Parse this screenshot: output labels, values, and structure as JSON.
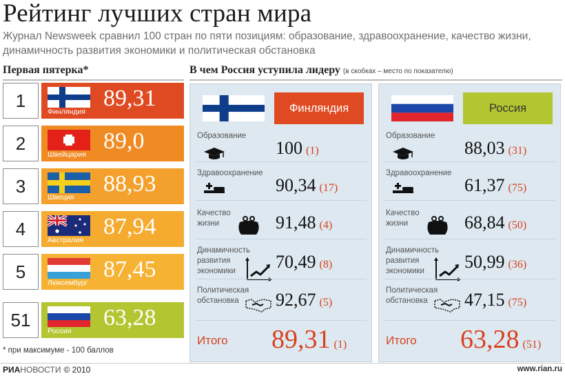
{
  "title": "Рейтинг лучших стран мира",
  "subtitle": "Журнал Newsweek сравнил 100 стран по пяти позициям: образование, здравоохранение, качество жизни, динамичность развития экономики и политическая обстановка",
  "top5": {
    "heading": "Первая пятерка*",
    "rows": [
      {
        "rank": "1",
        "country": "Финляндия",
        "score": "89,31",
        "bar_color": "#e04a22",
        "flag": "finland-flag"
      },
      {
        "rank": "2",
        "country": "Швейцария",
        "score": "89,0",
        "bar_color": "#f08a22",
        "flag": "switzerland-flag"
      },
      {
        "rank": "3",
        "country": "Швеция",
        "score": "88,93",
        "bar_color": "#f3a02c",
        "flag": "sweden-flag"
      },
      {
        "rank": "4",
        "country": "Австралия",
        "score": "87,94",
        "bar_color": "#f5ab2f",
        "flag": "australia-flag"
      },
      {
        "rank": "5",
        "country": "Люксембург",
        "score": "87,45",
        "bar_color": "#f6b233",
        "flag": "luxembourg-flag"
      },
      {
        "rank": "51",
        "country": "Россия",
        "score": "63,28",
        "bar_color": "#b3c531",
        "flag": "russia-flag"
      }
    ],
    "footnote": "* при максимуме - 100 баллов"
  },
  "comparison": {
    "heading": "В чем Россия уступила лидеру",
    "note": "(в скобках – место по показателю)",
    "categories": [
      "Образование",
      "Здравоохранение",
      "Качество жизни",
      "Динамичность развития экономики",
      "Политическая обстановка"
    ],
    "category_icons": [
      "graduation-cap-icon",
      "healthcare-icon",
      "wallet-icon",
      "growth-chart-icon",
      "handshake-icon"
    ],
    "total_label": "Итого",
    "panels": [
      {
        "country": "Финляндия",
        "header_color": "#e04a22",
        "country_text_color": "#ffffff",
        "flag": "finland-flag",
        "values": [
          {
            "v": "100",
            "r": "(1)"
          },
          {
            "v": "90,34",
            "r": "(17)"
          },
          {
            "v": "91,48",
            "r": "(4)"
          },
          {
            "v": "70,49",
            "r": "(8)"
          },
          {
            "v": "92,67",
            "r": "(5)"
          }
        ],
        "total": {
          "v": "89,31",
          "r": "(1)"
        }
      },
      {
        "country": "Россия",
        "header_color": "#b3c531",
        "country_text_color": "#333333",
        "flag": "russia-flag",
        "values": [
          {
            "v": "88,03",
            "r": "(31)"
          },
          {
            "v": "61,37",
            "r": "(75)"
          },
          {
            "v": "68,84",
            "r": "(50)"
          },
          {
            "v": "50,99",
            "r": "(36)"
          },
          {
            "v": "47,15",
            "r": "(75)"
          }
        ],
        "total": {
          "v": "63,28",
          "r": "(51)"
        }
      }
    ]
  },
  "footer": {
    "logo_a": "РИА",
    "logo_b": "НОВОСТИ",
    "copyright": "© 2010",
    "site": "www.rian.ru"
  },
  "colors": {
    "accent_red": "#d9401e",
    "panel_bg": "#dde8f0"
  }
}
